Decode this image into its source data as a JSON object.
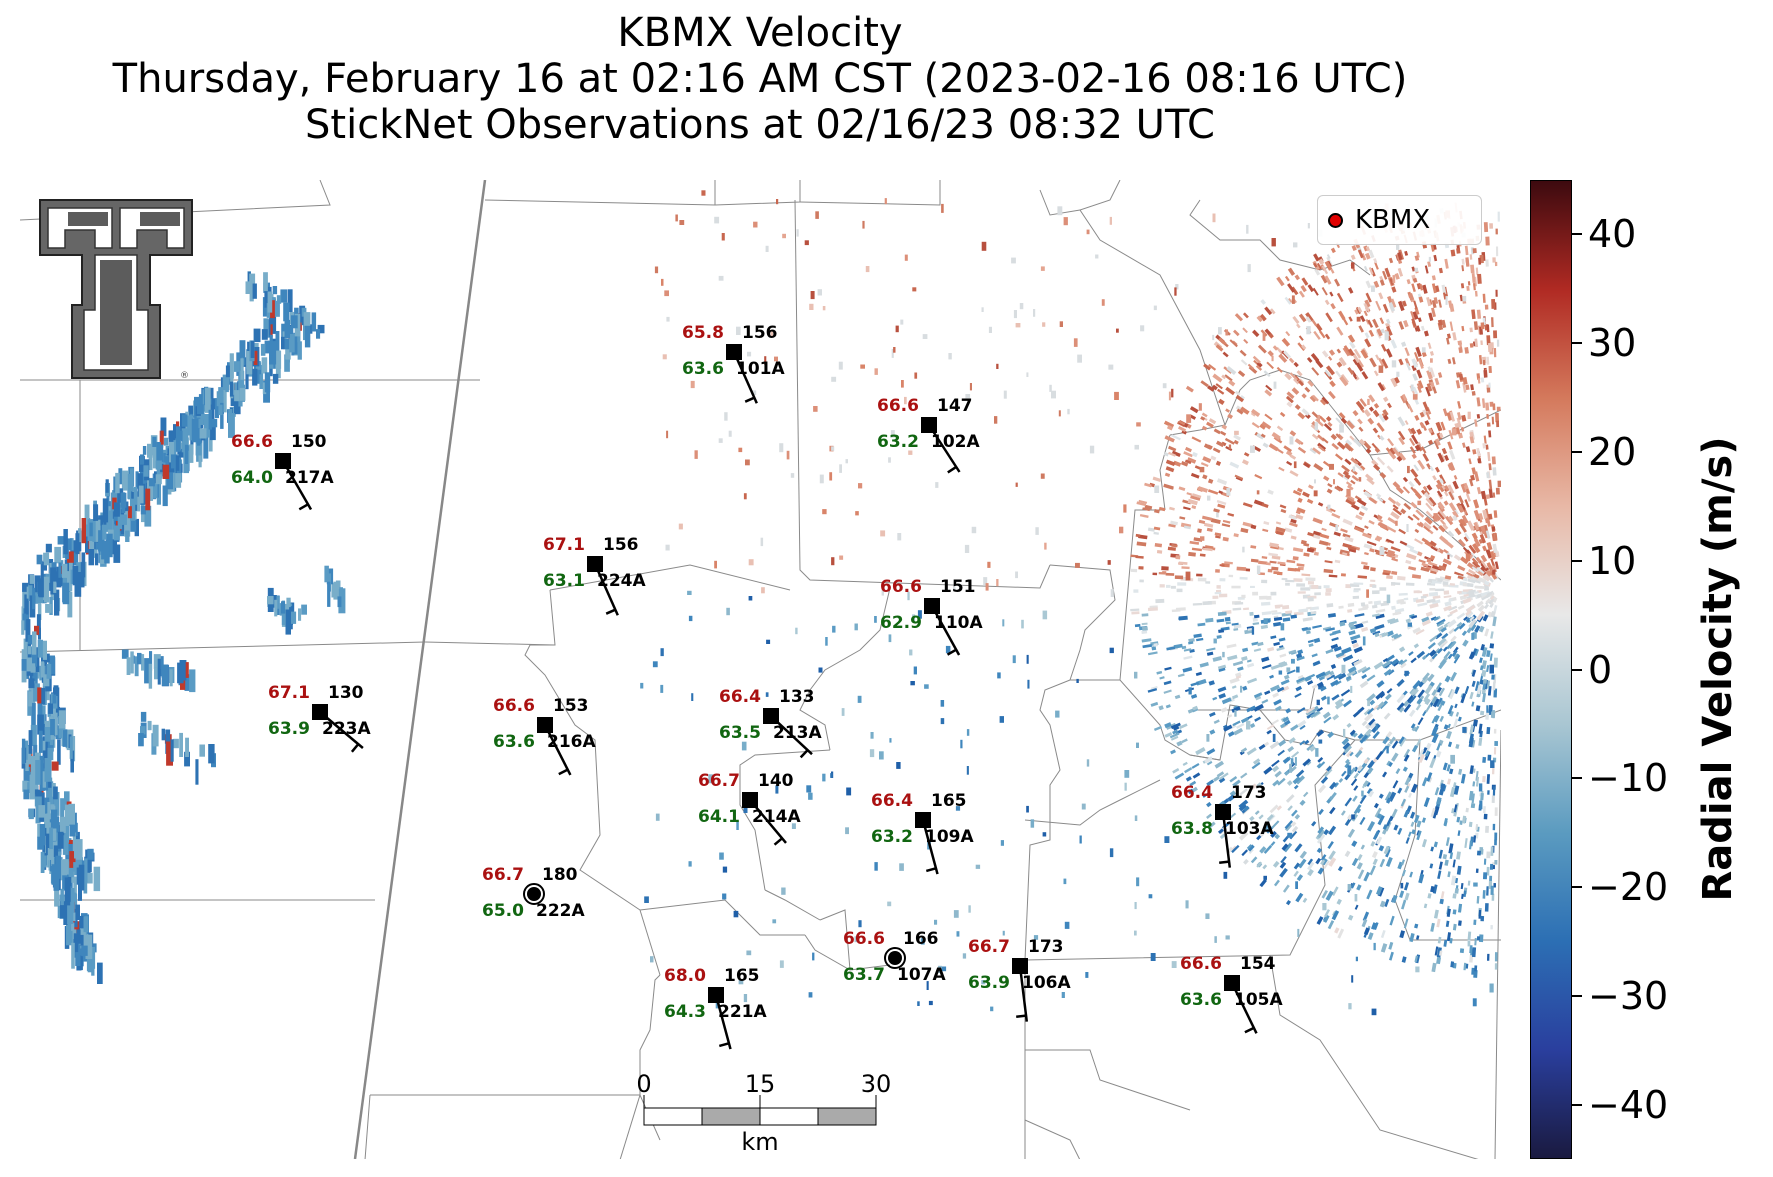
{
  "title": {
    "line1": "KBMX Velocity",
    "line2": "Thursday, February 16 at 02:16 AM CST (2023-02-16 08:16 UTC)",
    "line3": "StickNet Observations at 02/16/23 08:32 UTC"
  },
  "legend": {
    "label": "KBMX",
    "marker_color": "#e00000"
  },
  "colorbar": {
    "label": "Radial Velocity (m/s)",
    "min": -45,
    "max": 45,
    "ticks": [
      "40",
      "30",
      "20",
      "10",
      "0",
      "−10",
      "−20",
      "−30",
      "−40"
    ],
    "colors": [
      "#1a1a40",
      "#2a3f9e",
      "#2c6fb4",
      "#5b9bc0",
      "#a9c6d2",
      "#e8e8e8",
      "#e8b8a6",
      "#d4795c",
      "#b02a23",
      "#3d0a0f"
    ]
  },
  "scalebar": {
    "labels": [
      "0",
      "15",
      "30"
    ],
    "unit": "km"
  },
  "logo": {
    "name": "Texas Tech double-T logo"
  },
  "stations": [
    {
      "id": "101A",
      "temp": "65.8",
      "dew": "63.6",
      "dir": "156",
      "marker": "square"
    },
    {
      "id": "102A",
      "temp": "66.6",
      "dew": "63.2",
      "dir": "147",
      "marker": "square"
    },
    {
      "id": "217A",
      "temp": "66.6",
      "dew": "64.0",
      "dir": "150",
      "marker": "square"
    },
    {
      "id": "224A",
      "temp": "67.1",
      "dew": "63.1",
      "dir": "156",
      "marker": "square"
    },
    {
      "id": "110A",
      "temp": "66.6",
      "dew": "62.9",
      "dir": "151",
      "marker": "square"
    },
    {
      "id": "223A",
      "temp": "67.1",
      "dew": "63.9",
      "dir": "130",
      "marker": "square"
    },
    {
      "id": "216A",
      "temp": "66.6",
      "dew": "63.6",
      "dir": "153",
      "marker": "square"
    },
    {
      "id": "213A",
      "temp": "66.4",
      "dew": "63.5",
      "dir": "133",
      "marker": "square"
    },
    {
      "id": "214A",
      "temp": "66.7",
      "dew": "64.1",
      "dir": "140",
      "marker": "square"
    },
    {
      "id": "109A",
      "temp": "66.4",
      "dew": "63.2",
      "dir": "165",
      "marker": "square"
    },
    {
      "id": "103A",
      "temp": "66.4",
      "dew": "63.8",
      "dir": "173",
      "marker": "square"
    },
    {
      "id": "222A",
      "temp": "66.7",
      "dew": "65.0",
      "dir": "180",
      "marker": "calm"
    },
    {
      "id": "107A",
      "temp": "66.6",
      "dew": "63.7",
      "dir": "166",
      "marker": "calm"
    },
    {
      "id": "106A",
      "temp": "66.7",
      "dew": "63.9",
      "dir": "173",
      "marker": "square"
    },
    {
      "id": "221A",
      "temp": "68.0",
      "dew": "64.3",
      "dir": "165",
      "marker": "square"
    },
    {
      "id": "105A",
      "temp": "66.6",
      "dew": "63.6",
      "dir": "154",
      "marker": "square"
    }
  ]
}
